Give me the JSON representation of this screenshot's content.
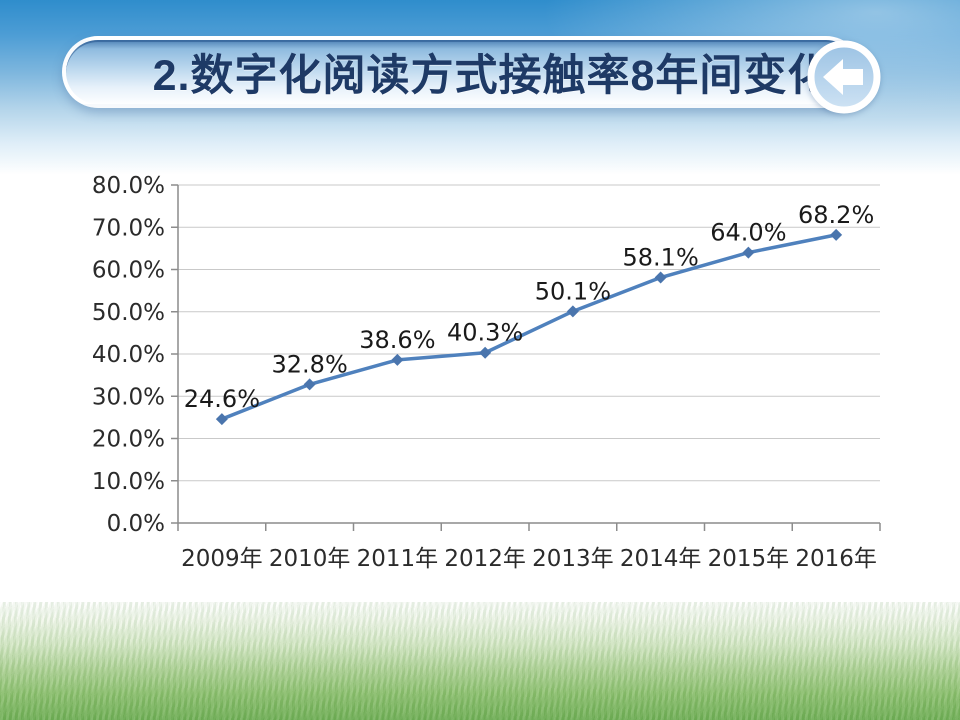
{
  "slide": {
    "header": {
      "title": "2.数字化阅读方式接触率8年间变化",
      "title_color": "#1e3a66",
      "back_icon": "left-arrow-in-circle"
    },
    "background": {
      "sky_top_color": "#2f8dcc",
      "grass_color": "#70af56"
    }
  },
  "chart_data": {
    "type": "line",
    "title": "",
    "xlabel": "",
    "ylabel": "",
    "categories": [
      "2009年",
      "2010年",
      "2011年",
      "2012年",
      "2013年",
      "2014年",
      "2015年",
      "2016年"
    ],
    "values": [
      24.6,
      32.8,
      38.6,
      40.3,
      50.1,
      58.1,
      64.0,
      68.2
    ],
    "data_labels": [
      "24.6%",
      "32.8%",
      "38.6%",
      "40.3%",
      "50.1%",
      "58.1%",
      "64.0%",
      "68.2%"
    ],
    "ytick_labels": [
      "0.0%",
      "10.0%",
      "20.0%",
      "30.0%",
      "40.0%",
      "50.0%",
      "60.0%",
      "70.0%",
      "80.0%"
    ],
    "ylim": [
      0,
      80
    ],
    "grid": true,
    "legend": "none",
    "line_color": "#4f81bd",
    "marker": "diamond",
    "marker_color": "#4a75ad",
    "grid_color": "#c9c9c9",
    "axis_color": "#8c8c8c",
    "axis_text_color": "#2b2b2b",
    "label_color": "#1a1a1a"
  }
}
